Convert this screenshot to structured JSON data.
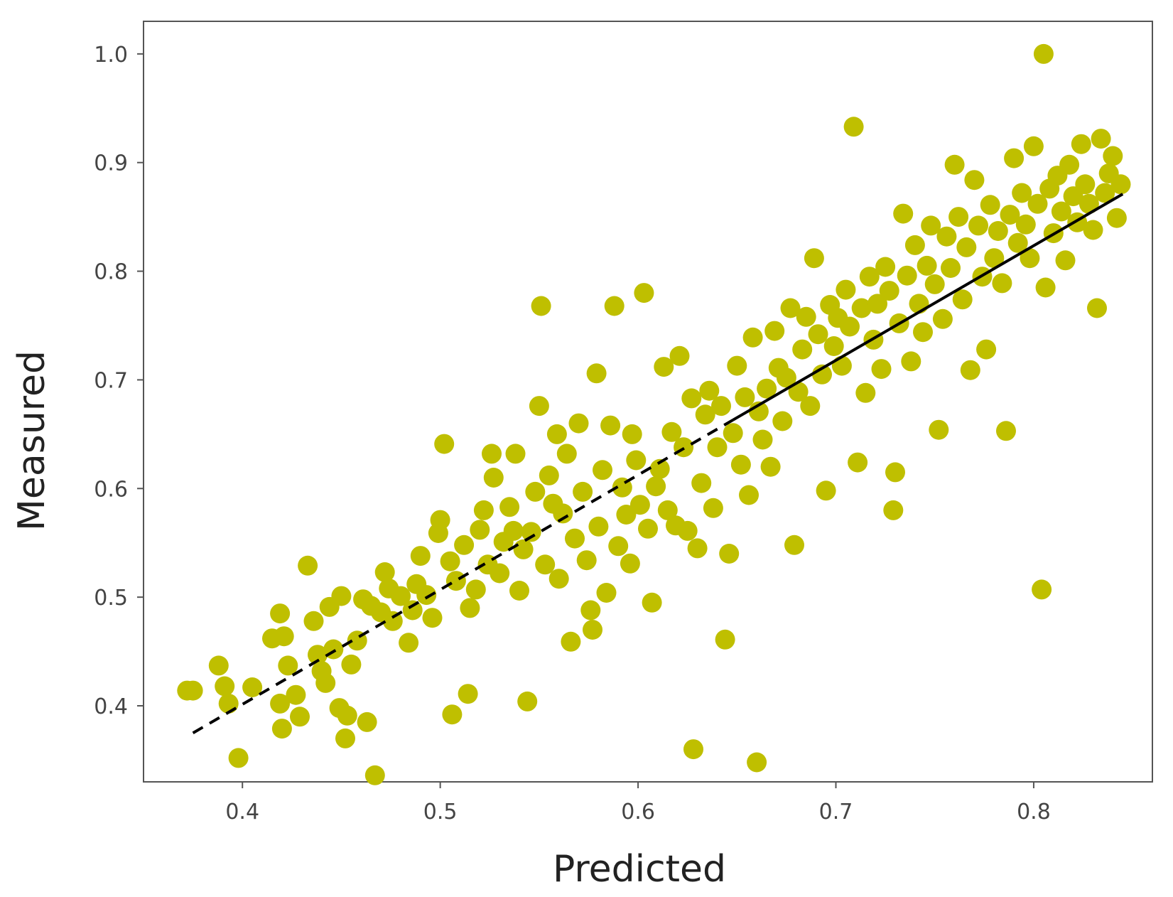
{
  "chart_data": {
    "type": "scatter",
    "title": "",
    "xlabel": "Predicted",
    "ylabel": "Measured",
    "xlim": [
      0.35,
      0.86
    ],
    "ylim": [
      0.33,
      1.03
    ],
    "xticks": [
      0.4,
      0.5,
      0.6,
      0.7,
      0.8
    ],
    "xtick_labels": [
      "0.4",
      "0.5",
      "0.6",
      "0.7",
      "0.8"
    ],
    "yticks": [
      0.4,
      0.5,
      0.6,
      0.7,
      0.8,
      0.9,
      1.0
    ],
    "ytick_labels": [
      "0.4",
      "0.5",
      "0.6",
      "0.7",
      "0.8",
      "0.9",
      "1.0"
    ],
    "grid": false,
    "legend": "none",
    "point_color": "#bfbf00",
    "line_color": "#000000",
    "fit_line": {
      "x_start": 0.375,
      "y_start": 0.375,
      "x_end": 0.845,
      "y_end": 0.871,
      "dashed_until_x": 0.648
    },
    "series": [
      {
        "points": [
          [
            0.372,
            0.414
          ],
          [
            0.375,
            0.414
          ],
          [
            0.388,
            0.437
          ],
          [
            0.391,
            0.418
          ],
          [
            0.393,
            0.402
          ],
          [
            0.398,
            0.352
          ],
          [
            0.405,
            0.417
          ],
          [
            0.415,
            0.462
          ],
          [
            0.419,
            0.485
          ],
          [
            0.421,
            0.464
          ],
          [
            0.419,
            0.402
          ],
          [
            0.42,
            0.379
          ],
          [
            0.423,
            0.437
          ],
          [
            0.427,
            0.41
          ],
          [
            0.429,
            0.39
          ],
          [
            0.433,
            0.529
          ],
          [
            0.436,
            0.478
          ],
          [
            0.438,
            0.447
          ],
          [
            0.44,
            0.432
          ],
          [
            0.442,
            0.421
          ],
          [
            0.444,
            0.491
          ],
          [
            0.446,
            0.452
          ],
          [
            0.449,
            0.398
          ],
          [
            0.45,
            0.501
          ],
          [
            0.452,
            0.37
          ],
          [
            0.453,
            0.391
          ],
          [
            0.455,
            0.438
          ],
          [
            0.458,
            0.46
          ],
          [
            0.461,
            0.498
          ],
          [
            0.463,
            0.385
          ],
          [
            0.465,
            0.492
          ],
          [
            0.467,
            0.336
          ],
          [
            0.47,
            0.486
          ],
          [
            0.472,
            0.523
          ],
          [
            0.474,
            0.508
          ],
          [
            0.476,
            0.478
          ],
          [
            0.48,
            0.501
          ],
          [
            0.484,
            0.458
          ],
          [
            0.486,
            0.488
          ],
          [
            0.488,
            0.512
          ],
          [
            0.49,
            0.538
          ],
          [
            0.493,
            0.502
          ],
          [
            0.496,
            0.481
          ],
          [
            0.499,
            0.559
          ],
          [
            0.5,
            0.571
          ],
          [
            0.502,
            0.641
          ],
          [
            0.505,
            0.533
          ],
          [
            0.506,
            0.392
          ],
          [
            0.508,
            0.515
          ],
          [
            0.512,
            0.548
          ],
          [
            0.514,
            0.411
          ],
          [
            0.515,
            0.49
          ],
          [
            0.518,
            0.507
          ],
          [
            0.52,
            0.562
          ],
          [
            0.522,
            0.58
          ],
          [
            0.524,
            0.53
          ],
          [
            0.526,
            0.632
          ],
          [
            0.527,
            0.61
          ],
          [
            0.53,
            0.522
          ],
          [
            0.532,
            0.551
          ],
          [
            0.535,
            0.583
          ],
          [
            0.537,
            0.561
          ],
          [
            0.538,
            0.632
          ],
          [
            0.54,
            0.506
          ],
          [
            0.542,
            0.544
          ],
          [
            0.544,
            0.404
          ],
          [
            0.546,
            0.56
          ],
          [
            0.548,
            0.597
          ],
          [
            0.55,
            0.676
          ],
          [
            0.551,
            0.768
          ],
          [
            0.553,
            0.53
          ],
          [
            0.555,
            0.612
          ],
          [
            0.557,
            0.586
          ],
          [
            0.559,
            0.65
          ],
          [
            0.56,
            0.517
          ],
          [
            0.562,
            0.577
          ],
          [
            0.564,
            0.632
          ],
          [
            0.566,
            0.459
          ],
          [
            0.568,
            0.554
          ],
          [
            0.57,
            0.66
          ],
          [
            0.572,
            0.597
          ],
          [
            0.574,
            0.534
          ],
          [
            0.576,
            0.488
          ],
          [
            0.577,
            0.47
          ],
          [
            0.579,
            0.706
          ],
          [
            0.58,
            0.565
          ],
          [
            0.582,
            0.617
          ],
          [
            0.584,
            0.504
          ],
          [
            0.586,
            0.658
          ],
          [
            0.588,
            0.768
          ],
          [
            0.59,
            0.547
          ],
          [
            0.592,
            0.601
          ],
          [
            0.594,
            0.576
          ],
          [
            0.596,
            0.531
          ],
          [
            0.597,
            0.65
          ],
          [
            0.599,
            0.626
          ],
          [
            0.601,
            0.585
          ],
          [
            0.603,
            0.78
          ],
          [
            0.605,
            0.563
          ],
          [
            0.607,
            0.495
          ],
          [
            0.609,
            0.602
          ],
          [
            0.611,
            0.618
          ],
          [
            0.613,
            0.712
          ],
          [
            0.615,
            0.58
          ],
          [
            0.617,
            0.652
          ],
          [
            0.619,
            0.566
          ],
          [
            0.621,
            0.722
          ],
          [
            0.623,
            0.638
          ],
          [
            0.625,
            0.561
          ],
          [
            0.627,
            0.683
          ],
          [
            0.628,
            0.36
          ],
          [
            0.63,
            0.545
          ],
          [
            0.632,
            0.605
          ],
          [
            0.634,
            0.668
          ],
          [
            0.636,
            0.69
          ],
          [
            0.638,
            0.582
          ],
          [
            0.64,
            0.638
          ],
          [
            0.642,
            0.676
          ],
          [
            0.644,
            0.461
          ],
          [
            0.646,
            0.54
          ],
          [
            0.648,
            0.651
          ],
          [
            0.65,
            0.713
          ],
          [
            0.652,
            0.622
          ],
          [
            0.654,
            0.684
          ],
          [
            0.656,
            0.594
          ],
          [
            0.658,
            0.739
          ],
          [
            0.66,
            0.348
          ],
          [
            0.661,
            0.671
          ],
          [
            0.663,
            0.645
          ],
          [
            0.665,
            0.692
          ],
          [
            0.667,
            0.62
          ],
          [
            0.669,
            0.745
          ],
          [
            0.671,
            0.711
          ],
          [
            0.673,
            0.662
          ],
          [
            0.675,
            0.702
          ],
          [
            0.677,
            0.766
          ],
          [
            0.679,
            0.548
          ],
          [
            0.681,
            0.689
          ],
          [
            0.683,
            0.728
          ],
          [
            0.685,
            0.758
          ],
          [
            0.687,
            0.676
          ],
          [
            0.689,
            0.812
          ],
          [
            0.691,
            0.742
          ],
          [
            0.693,
            0.705
          ],
          [
            0.695,
            0.598
          ],
          [
            0.697,
            0.769
          ],
          [
            0.699,
            0.731
          ],
          [
            0.701,
            0.757
          ],
          [
            0.703,
            0.713
          ],
          [
            0.705,
            0.783
          ],
          [
            0.707,
            0.749
          ],
          [
            0.709,
            0.933
          ],
          [
            0.711,
            0.624
          ],
          [
            0.713,
            0.766
          ],
          [
            0.715,
            0.688
          ],
          [
            0.717,
            0.795
          ],
          [
            0.719,
            0.737
          ],
          [
            0.721,
            0.77
          ],
          [
            0.723,
            0.71
          ],
          [
            0.725,
            0.804
          ],
          [
            0.727,
            0.782
          ],
          [
            0.729,
            0.58
          ],
          [
            0.73,
            0.615
          ],
          [
            0.732,
            0.752
          ],
          [
            0.734,
            0.853
          ],
          [
            0.736,
            0.796
          ],
          [
            0.738,
            0.717
          ],
          [
            0.74,
            0.824
          ],
          [
            0.742,
            0.77
          ],
          [
            0.744,
            0.744
          ],
          [
            0.746,
            0.805
          ],
          [
            0.748,
            0.842
          ],
          [
            0.75,
            0.788
          ],
          [
            0.752,
            0.654
          ],
          [
            0.754,
            0.756
          ],
          [
            0.756,
            0.832
          ],
          [
            0.758,
            0.803
          ],
          [
            0.76,
            0.898
          ],
          [
            0.762,
            0.85
          ],
          [
            0.764,
            0.774
          ],
          [
            0.766,
            0.822
          ],
          [
            0.768,
            0.709
          ],
          [
            0.77,
            0.884
          ],
          [
            0.772,
            0.842
          ],
          [
            0.774,
            0.795
          ],
          [
            0.776,
            0.728
          ],
          [
            0.778,
            0.861
          ],
          [
            0.78,
            0.812
          ],
          [
            0.782,
            0.837
          ],
          [
            0.784,
            0.789
          ],
          [
            0.786,
            0.653
          ],
          [
            0.788,
            0.852
          ],
          [
            0.79,
            0.904
          ],
          [
            0.792,
            0.826
          ],
          [
            0.794,
            0.872
          ],
          [
            0.796,
            0.843
          ],
          [
            0.798,
            0.812
          ],
          [
            0.8,
            0.915
          ],
          [
            0.802,
            0.862
          ],
          [
            0.804,
            0.507
          ],
          [
            0.805,
            1.0
          ],
          [
            0.806,
            0.785
          ],
          [
            0.808,
            0.876
          ],
          [
            0.81,
            0.835
          ],
          [
            0.812,
            0.888
          ],
          [
            0.814,
            0.855
          ],
          [
            0.816,
            0.81
          ],
          [
            0.818,
            0.898
          ],
          [
            0.82,
            0.869
          ],
          [
            0.822,
            0.845
          ],
          [
            0.824,
            0.917
          ],
          [
            0.826,
            0.88
          ],
          [
            0.828,
            0.862
          ],
          [
            0.83,
            0.838
          ],
          [
            0.832,
            0.766
          ],
          [
            0.834,
            0.922
          ],
          [
            0.836,
            0.872
          ],
          [
            0.838,
            0.89
          ],
          [
            0.84,
            0.906
          ],
          [
            0.842,
            0.849
          ],
          [
            0.844,
            0.88
          ]
        ]
      }
    ]
  }
}
